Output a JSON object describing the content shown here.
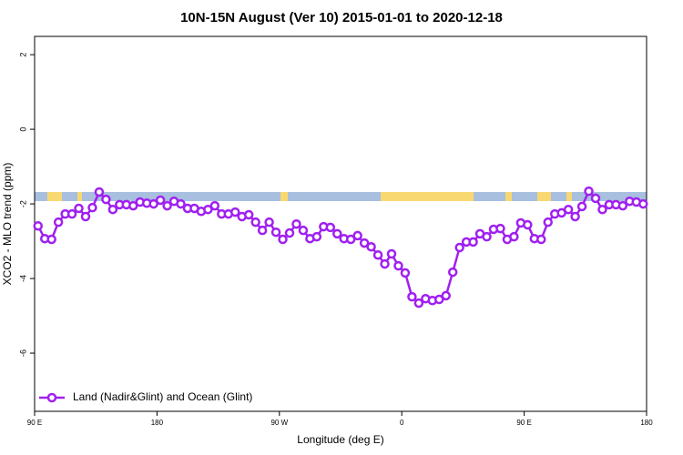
{
  "chart_data": {
    "type": "line",
    "title": "10N-15N August (Ver 10)   2015-01-01 to 2020-12-18",
    "x_label": "Longitude (deg E)",
    "y_label": "XCO2 - MLO trend (ppm)",
    "x": [
      92.5,
      97.5,
      102.5,
      107.5,
      112.5,
      117.5,
      122.5,
      127.5,
      132.5,
      137.5,
      142.5,
      147.5,
      152.5,
      157.5,
      162.5,
      167.5,
      172.5,
      177.5,
      182.5,
      187.5,
      192.5,
      197.5,
      202.5,
      207.5,
      212.5,
      217.5,
      222.5,
      227.5,
      232.5,
      237.5,
      242.5,
      247.5,
      252.5,
      257.5,
      262.5,
      267.5,
      272.5,
      277.5,
      282.5,
      287.5,
      292.5,
      297.5,
      302.5,
      307.5,
      312.5,
      317.5,
      322.5,
      327.5,
      332.5,
      337.5,
      342.5,
      347.5,
      352.5,
      357.5,
      362.5,
      367.5,
      372.5,
      377.5,
      382.5,
      387.5,
      392.5,
      397.5,
      402.5,
      407.5,
      412.5,
      417.5,
      422.5,
      427.5,
      432.5,
      437.5,
      442.5,
      447.5,
      452.5,
      457.5,
      462.5,
      467.5,
      472.5,
      477.5,
      482.5,
      487.5,
      492.5,
      497.5,
      502.5,
      507.5,
      512.5,
      517.5,
      522.5,
      527.5,
      532.5,
      537.5
    ],
    "series": [
      {
        "name": "Land (Nadir&Glint) and Ocean (Glint)",
        "color": "#a020f0",
        "values": [
          -2.59,
          -2.93,
          -2.95,
          -2.49,
          -2.27,
          -2.27,
          -2.12,
          -2.34,
          -2.1,
          -1.68,
          -1.88,
          -2.15,
          -2.02,
          -2.02,
          -2.05,
          -1.95,
          -1.98,
          -2.0,
          -1.9,
          -2.05,
          -1.93,
          -2.0,
          -2.12,
          -2.12,
          -2.2,
          -2.15,
          -2.05,
          -2.27,
          -2.27,
          -2.22,
          -2.34,
          -2.29,
          -2.49,
          -2.71,
          -2.49,
          -2.76,
          -2.95,
          -2.78,
          -2.54,
          -2.71,
          -2.93,
          -2.88,
          -2.61,
          -2.63,
          -2.8,
          -2.93,
          -2.95,
          -2.85,
          -3.05,
          -3.15,
          -3.37,
          -3.61,
          -3.34,
          -3.66,
          -3.85,
          -4.49,
          -4.66,
          -4.54,
          -4.59,
          -4.56,
          -4.46,
          -3.83,
          -3.17,
          -3.02,
          -3.02,
          -2.8,
          -2.88,
          -2.68,
          -2.66,
          -2.95,
          -2.88,
          -2.51,
          -2.56,
          -2.93,
          -2.95,
          -2.49,
          -2.27,
          -2.24,
          -2.15,
          -2.34,
          -2.07,
          -1.66,
          -1.85,
          -2.15,
          -2.02,
          -2.02,
          -2.05,
          -1.93,
          -1.95,
          -2.0
        ]
      }
    ],
    "xlim": [
      90,
      540
    ],
    "xticks": [
      {
        "value": 90,
        "label": "90 E"
      },
      {
        "value": 180,
        "label": "180"
      },
      {
        "value": 270,
        "label": "90 W"
      },
      {
        "value": 360,
        "label": "0"
      },
      {
        "value": 450,
        "label": "90 E"
      },
      {
        "value": 540,
        "label": "180"
      }
    ],
    "ylim": [
      -7.56,
      2.49
    ],
    "yticks": [
      2,
      0,
      -2,
      -4,
      -6
    ],
    "legend": "bottom-left"
  }
}
